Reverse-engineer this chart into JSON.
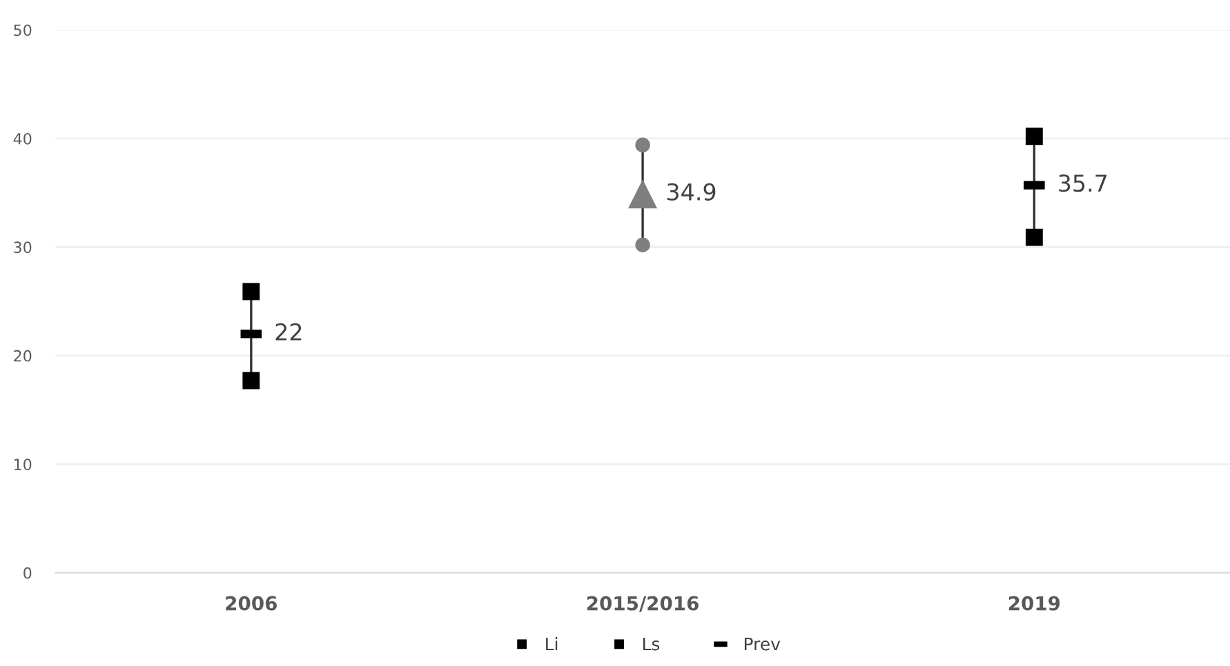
{
  "chart_data": {
    "type": "scatter",
    "categories": [
      "2006",
      "2015/2016",
      "2019"
    ],
    "series": [
      {
        "name": "Li",
        "colors": [
          "#000000",
          "#7f7f7f",
          "#000000"
        ],
        "marker": [
          "square",
          "circle",
          "square"
        ],
        "values": [
          17.7,
          30.2,
          30.9
        ]
      },
      {
        "name": "Ls",
        "colors": [
          "#000000",
          "#7f7f7f",
          "#000000"
        ],
        "marker": [
          "square",
          "circle",
          "square"
        ],
        "values": [
          25.9,
          39.4,
          40.2
        ]
      },
      {
        "name": "Prev",
        "colors": [
          "#000000",
          "#7f7f7f",
          "#000000"
        ],
        "marker": [
          "dash",
          "triangle",
          "dash"
        ],
        "values": [
          22,
          34.9,
          35.7
        ],
        "value_labels": [
          "22",
          "34.9",
          "35.7"
        ]
      }
    ],
    "ylim": [
      0,
      50
    ],
    "yticks": [
      0,
      10,
      20,
      30,
      40,
      50
    ],
    "grid": "y",
    "legend": "bottom"
  }
}
